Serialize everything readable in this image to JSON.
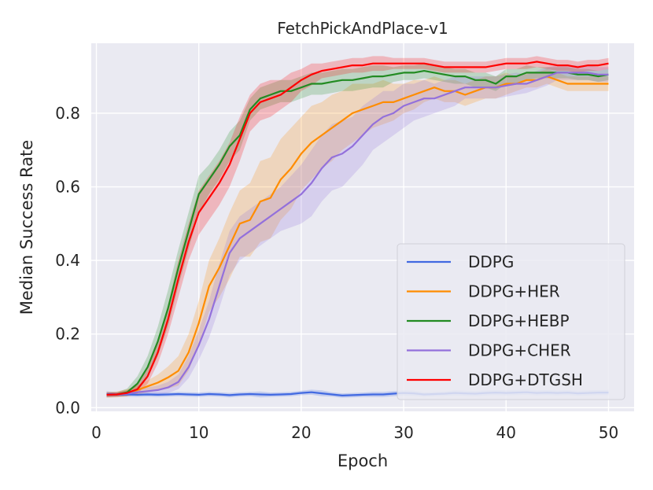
{
  "chart_data": {
    "type": "line",
    "title": "FetchPickAndPlace-v1",
    "xlabel": "Epoch",
    "ylabel": "Median Success Rate",
    "xlim": [
      -0.5,
      52.5
    ],
    "ylim": [
      -0.01,
      0.99
    ],
    "x_ticks": [
      "0",
      "10",
      "20",
      "30",
      "40",
      "50"
    ],
    "y_ticks": [
      "0.0",
      "0.2",
      "0.4",
      "0.6",
      "0.8"
    ],
    "x_tick_values": [
      0,
      10,
      20,
      30,
      40,
      50
    ],
    "y_tick_values": [
      0.0,
      0.2,
      0.4,
      0.6,
      0.8
    ],
    "grid": true,
    "legend_position": "lower-right",
    "x": [
      1,
      2,
      3,
      4,
      5,
      6,
      7,
      8,
      9,
      10,
      11,
      12,
      13,
      14,
      15,
      16,
      17,
      18,
      19,
      20,
      21,
      22,
      23,
      24,
      25,
      26,
      27,
      28,
      29,
      30,
      31,
      32,
      33,
      34,
      35,
      36,
      37,
      38,
      39,
      40,
      41,
      42,
      43,
      44,
      45,
      46,
      47,
      48,
      49,
      50
    ],
    "series": [
      {
        "name": "DDPG",
        "color": "#4169e1",
        "values": [
          0.037,
          0.036,
          0.036,
          0.035,
          0.036,
          0.035,
          0.036,
          0.037,
          0.036,
          0.035,
          0.037,
          0.036,
          0.034,
          0.036,
          0.037,
          0.036,
          0.035,
          0.036,
          0.037,
          0.04,
          0.042,
          0.039,
          0.036,
          0.033,
          0.034,
          0.035,
          0.036,
          0.036,
          0.038,
          0.04,
          0.039,
          0.036,
          0.037,
          0.038,
          0.04,
          0.039,
          0.038,
          0.04,
          0.041,
          0.04,
          0.041,
          0.042,
          0.04,
          0.041,
          0.04,
          0.041,
          0.039,
          0.04,
          0.041,
          0.041
        ],
        "band": [
          0.008,
          0.006,
          0.006,
          0.006,
          0.006,
          0.006,
          0.006,
          0.006,
          0.006,
          0.006,
          0.006,
          0.006,
          0.006,
          0.006,
          0.006,
          0.008,
          0.006,
          0.006,
          0.006,
          0.006,
          0.007,
          0.008,
          0.006,
          0.006,
          0.006,
          0.006,
          0.007,
          0.007,
          0.007,
          0.007,
          0.007,
          0.006,
          0.006,
          0.006,
          0.007,
          0.007,
          0.007,
          0.007,
          0.007,
          0.007,
          0.007,
          0.007,
          0.007,
          0.007,
          0.007,
          0.007,
          0.007,
          0.007,
          0.007,
          0.007
        ]
      },
      {
        "name": "DDPG+HER",
        "color": "#ff8c00",
        "values": [
          0.035,
          0.036,
          0.04,
          0.048,
          0.058,
          0.068,
          0.082,
          0.1,
          0.15,
          0.23,
          0.33,
          0.38,
          0.44,
          0.5,
          0.51,
          0.56,
          0.57,
          0.62,
          0.65,
          0.69,
          0.72,
          0.74,
          0.76,
          0.78,
          0.8,
          0.81,
          0.82,
          0.83,
          0.83,
          0.84,
          0.85,
          0.86,
          0.87,
          0.86,
          0.86,
          0.85,
          0.86,
          0.87,
          0.87,
          0.88,
          0.88,
          0.89,
          0.89,
          0.9,
          0.89,
          0.88,
          0.88,
          0.88,
          0.88,
          0.88
        ],
        "band": [
          0.008,
          0.008,
          0.01,
          0.012,
          0.016,
          0.022,
          0.03,
          0.04,
          0.05,
          0.06,
          0.07,
          0.08,
          0.09,
          0.09,
          0.1,
          0.11,
          0.11,
          0.11,
          0.11,
          0.1,
          0.1,
          0.09,
          0.09,
          0.08,
          0.08,
          0.07,
          0.06,
          0.06,
          0.05,
          0.04,
          0.04,
          0.03,
          0.03,
          0.03,
          0.03,
          0.03,
          0.03,
          0.03,
          0.03,
          0.03,
          0.02,
          0.02,
          0.02,
          0.02,
          0.02,
          0.02,
          0.02,
          0.02,
          0.02,
          0.02
        ]
      },
      {
        "name": "DDPG+HEBP",
        "color": "#228b22",
        "values": [
          0.035,
          0.036,
          0.042,
          0.065,
          0.11,
          0.18,
          0.27,
          0.38,
          0.48,
          0.58,
          0.62,
          0.66,
          0.71,
          0.74,
          0.81,
          0.84,
          0.85,
          0.86,
          0.86,
          0.87,
          0.88,
          0.88,
          0.885,
          0.89,
          0.89,
          0.895,
          0.9,
          0.9,
          0.905,
          0.91,
          0.91,
          0.915,
          0.91,
          0.905,
          0.9,
          0.9,
          0.89,
          0.89,
          0.88,
          0.9,
          0.9,
          0.91,
          0.91,
          0.91,
          0.91,
          0.91,
          0.905,
          0.905,
          0.9,
          0.905
        ],
        "band": [
          0.006,
          0.006,
          0.01,
          0.02,
          0.03,
          0.04,
          0.05,
          0.05,
          0.05,
          0.05,
          0.04,
          0.04,
          0.04,
          0.04,
          0.03,
          0.03,
          0.03,
          0.03,
          0.03,
          0.03,
          0.03,
          0.03,
          0.03,
          0.03,
          0.03,
          0.03,
          0.03,
          0.03,
          0.02,
          0.02,
          0.02,
          0.02,
          0.02,
          0.02,
          0.02,
          0.02,
          0.02,
          0.02,
          0.02,
          0.02,
          0.02,
          0.02,
          0.015,
          0.015,
          0.015,
          0.015,
          0.015,
          0.015,
          0.015,
          0.015
        ]
      },
      {
        "name": "DDPG+CHER",
        "color": "#9370db",
        "values": [
          0.035,
          0.036,
          0.038,
          0.042,
          0.045,
          0.048,
          0.055,
          0.07,
          0.11,
          0.17,
          0.24,
          0.33,
          0.42,
          0.46,
          0.48,
          0.5,
          0.52,
          0.54,
          0.56,
          0.58,
          0.61,
          0.65,
          0.68,
          0.69,
          0.71,
          0.74,
          0.77,
          0.79,
          0.8,
          0.82,
          0.83,
          0.84,
          0.84,
          0.85,
          0.86,
          0.87,
          0.87,
          0.87,
          0.87,
          0.875,
          0.88,
          0.88,
          0.89,
          0.9,
          0.91,
          0.91,
          0.91,
          0.91,
          0.905,
          0.905
        ],
        "band": [
          0.006,
          0.006,
          0.006,
          0.008,
          0.01,
          0.012,
          0.015,
          0.02,
          0.03,
          0.04,
          0.05,
          0.06,
          0.06,
          0.06,
          0.06,
          0.06,
          0.06,
          0.06,
          0.07,
          0.08,
          0.09,
          0.09,
          0.09,
          0.09,
          0.08,
          0.08,
          0.07,
          0.07,
          0.06,
          0.06,
          0.05,
          0.05,
          0.04,
          0.04,
          0.04,
          0.03,
          0.03,
          0.03,
          0.03,
          0.03,
          0.03,
          0.025,
          0.025,
          0.025,
          0.02,
          0.02,
          0.02,
          0.02,
          0.02,
          0.02
        ]
      },
      {
        "name": "DDPG+DTGSH",
        "color": "#ff0000",
        "values": [
          0.035,
          0.036,
          0.04,
          0.05,
          0.085,
          0.15,
          0.24,
          0.35,
          0.45,
          0.53,
          0.57,
          0.61,
          0.66,
          0.73,
          0.8,
          0.83,
          0.84,
          0.85,
          0.87,
          0.89,
          0.905,
          0.915,
          0.92,
          0.925,
          0.93,
          0.93,
          0.935,
          0.935,
          0.935,
          0.935,
          0.935,
          0.935,
          0.93,
          0.925,
          0.925,
          0.925,
          0.925,
          0.925,
          0.93,
          0.935,
          0.935,
          0.935,
          0.94,
          0.935,
          0.93,
          0.93,
          0.925,
          0.93,
          0.93,
          0.935
        ],
        "band": [
          0.006,
          0.006,
          0.008,
          0.012,
          0.02,
          0.03,
          0.04,
          0.05,
          0.05,
          0.06,
          0.06,
          0.06,
          0.06,
          0.06,
          0.05,
          0.05,
          0.05,
          0.04,
          0.04,
          0.03,
          0.03,
          0.02,
          0.02,
          0.02,
          0.02,
          0.02,
          0.02,
          0.02,
          0.015,
          0.015,
          0.015,
          0.015,
          0.015,
          0.015,
          0.015,
          0.015,
          0.015,
          0.015,
          0.015,
          0.015,
          0.015,
          0.015,
          0.015,
          0.015,
          0.015,
          0.015,
          0.015,
          0.015,
          0.015,
          0.015
        ]
      }
    ]
  },
  "colors": {
    "plot_background": "#eaeaf2",
    "grid": "#ffffff",
    "text": "#262626"
  }
}
